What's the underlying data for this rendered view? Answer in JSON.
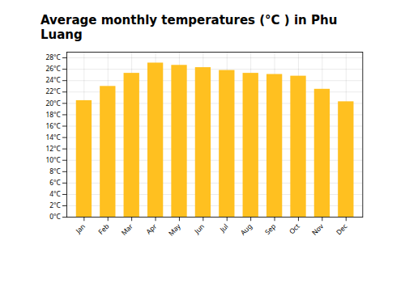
{
  "chart_data": {
    "type": "bar",
    "title": "Average monthly temperatures (°C ) in Phu Luang",
    "categories": [
      "Jan",
      "Feb",
      "Mar",
      "Apr",
      "May",
      "Jun",
      "Jul",
      "Aug",
      "Sep",
      "Oct",
      "Nov",
      "Dec"
    ],
    "values": [
      20.5,
      23.0,
      25.3,
      27.1,
      26.7,
      26.3,
      25.8,
      25.3,
      25.1,
      24.8,
      22.5,
      20.3
    ],
    "color": "#FFC020",
    "ylim": [
      0,
      29
    ],
    "yticks": [
      {
        "value": 0,
        "label": "0°C"
      },
      {
        "value": 2,
        "label": "2°C"
      },
      {
        "value": 4,
        "label": "4°C"
      },
      {
        "value": 6,
        "label": "6°C"
      },
      {
        "value": 8,
        "label": "8°C"
      },
      {
        "value": 10,
        "label": "10°C"
      },
      {
        "value": 12,
        "label": "12°C"
      },
      {
        "value": 14,
        "label": "14°C"
      },
      {
        "value": 16,
        "label": "16°C"
      },
      {
        "value": 18,
        "label": "18°C"
      },
      {
        "value": 20,
        "label": "20°C"
      },
      {
        "value": 22,
        "label": "22°C"
      },
      {
        "value": 24,
        "label": "24°C"
      },
      {
        "value": 26,
        "label": "26°C"
      },
      {
        "value": 28,
        "label": "28°C"
      }
    ],
    "grid": true
  }
}
